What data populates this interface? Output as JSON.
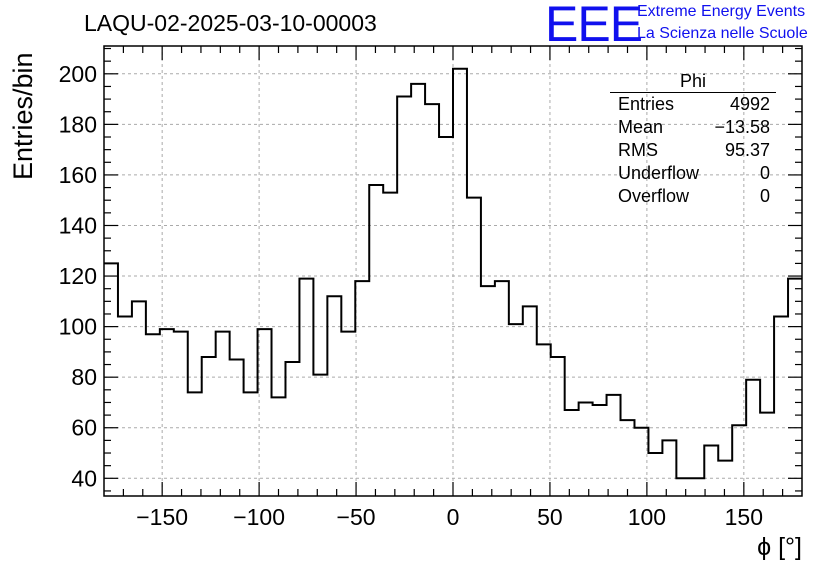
{
  "header": {
    "title": "LAQU-02-2025-03-10-00003",
    "logo_text": "EEE",
    "brand_line1": "Extreme Energy Events",
    "brand_line2": "La Scienza nelle Scuole"
  },
  "stats": {
    "title": "Phi",
    "rows": [
      {
        "label": "Entries",
        "value": "4992"
      },
      {
        "label": "Mean",
        "value": "−13.58"
      },
      {
        "label": "RMS",
        "value": "95.37"
      },
      {
        "label": "Underflow",
        "value": "0"
      },
      {
        "label": "Overflow",
        "value": "0"
      }
    ]
  },
  "chart_data": {
    "type": "bar",
    "histogram": true,
    "xlabel": "ϕ [°]",
    "ylabel": "Entries/bin",
    "xlim": [
      -180,
      180
    ],
    "ylim": [
      33,
      211
    ],
    "xticks": [
      -150,
      -100,
      -50,
      0,
      50,
      100,
      150
    ],
    "xtick_labels": [
      "−150",
      "−100",
      "−50",
      "0",
      "50",
      "100",
      "150"
    ],
    "yticks": [
      40,
      60,
      80,
      100,
      120,
      140,
      160,
      180,
      200
    ],
    "grid": true,
    "bin_width": 7.2,
    "values": [
      125,
      104,
      110,
      97,
      99,
      98,
      74,
      88,
      98,
      87,
      74,
      99,
      72,
      86,
      119,
      81,
      112,
      98,
      118,
      156,
      153,
      191,
      196,
      188,
      175,
      202,
      151,
      116,
      118,
      101,
      108,
      93,
      88,
      67,
      70,
      69,
      73,
      63,
      60,
      50,
      55,
      40,
      40,
      53,
      47,
      61,
      79,
      66,
      104,
      119
    ]
  }
}
